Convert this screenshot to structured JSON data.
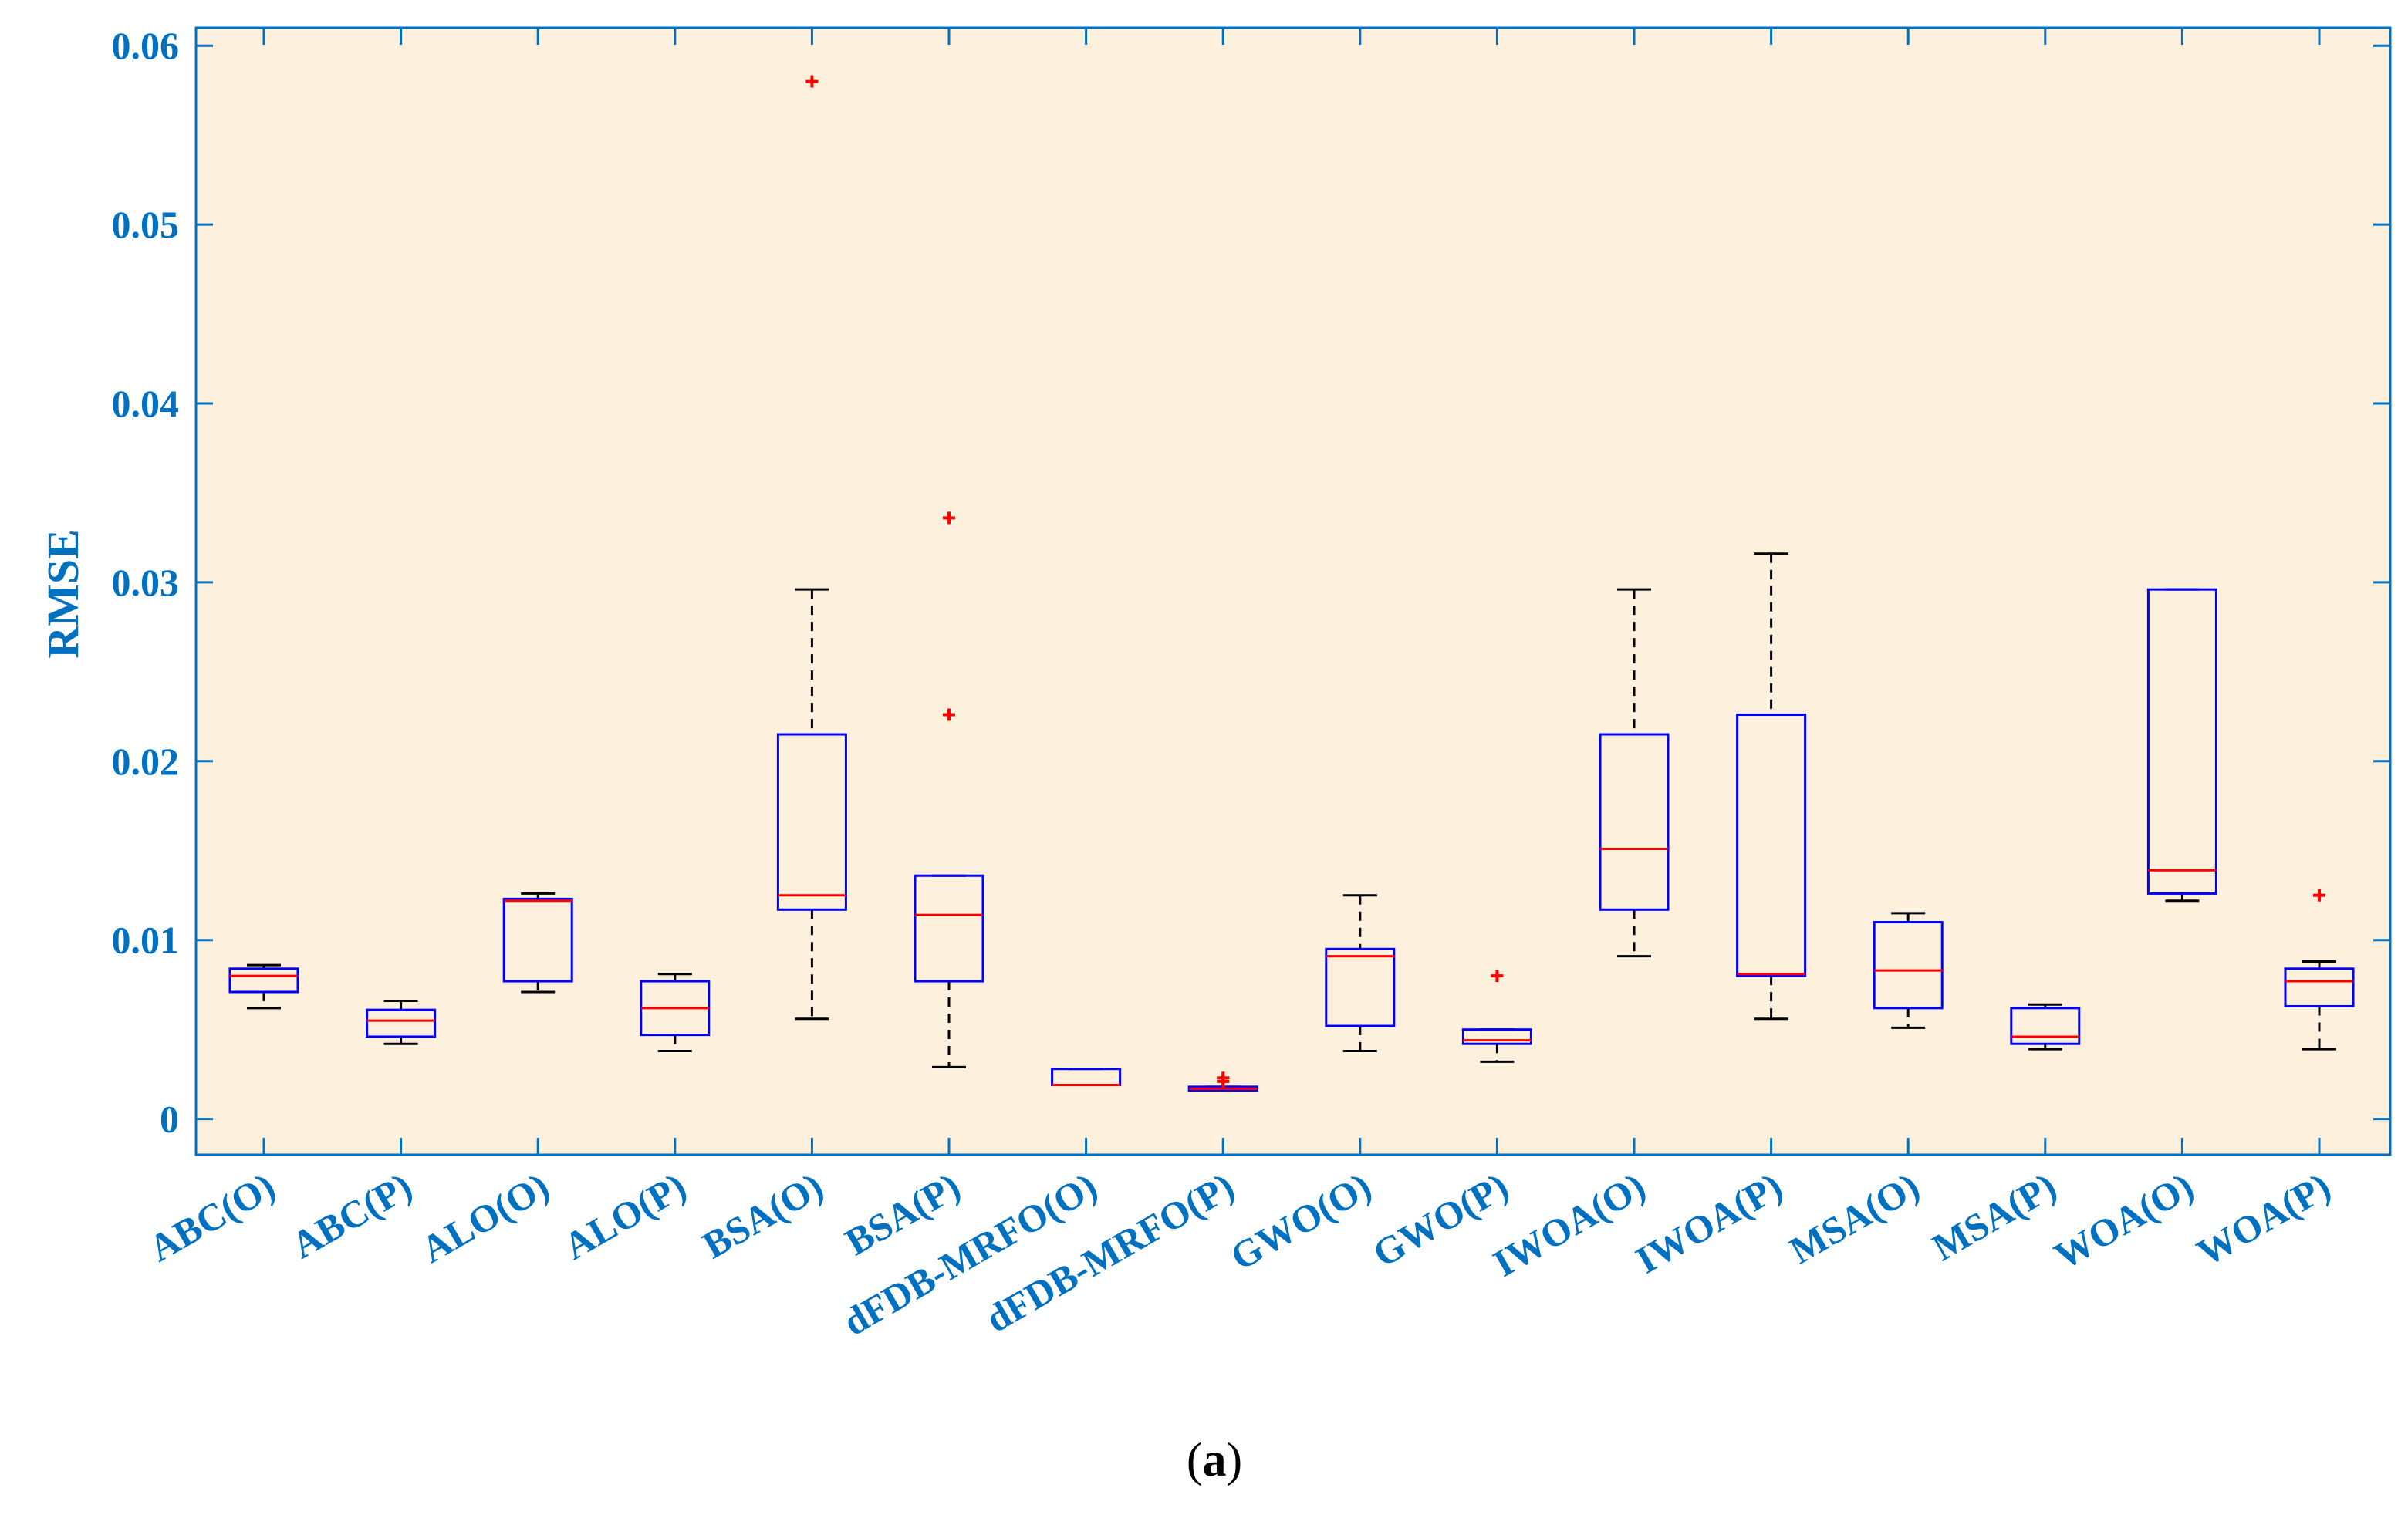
{
  "chart_data": {
    "type": "boxplot",
    "ylabel": "RMSE",
    "xlabel": "",
    "caption_open": "(",
    "caption_letter": "a",
    "caption_close": ")",
    "ylim": [
      -0.002,
      0.061
    ],
    "yticks": [
      {
        "value": 0,
        "label": "0"
      },
      {
        "value": 0.01,
        "label": "0.01"
      },
      {
        "value": 0.02,
        "label": "0.02"
      },
      {
        "value": 0.03,
        "label": "0.03"
      },
      {
        "value": 0.04,
        "label": "0.04"
      },
      {
        "value": 0.05,
        "label": "0.05"
      },
      {
        "value": 0.06,
        "label": "0.06"
      }
    ],
    "grid": false,
    "colors": {
      "plot_background": "#fdf0dc",
      "axis": "#0070c0",
      "tick_label": "#0070c0",
      "box": "#0000ff",
      "median": "#ff0000",
      "whisker": "#000000",
      "outlier": "#ff0000"
    },
    "boxes": [
      {
        "label": "ABC(O)",
        "min": 0.0062,
        "q1": 0.0071,
        "median": 0.008,
        "q3": 0.0084,
        "max": 0.0086,
        "outliers": []
      },
      {
        "label": "ABC(P)",
        "min": 0.0042,
        "q1": 0.0046,
        "median": 0.0055,
        "q3": 0.0061,
        "max": 0.0066,
        "outliers": []
      },
      {
        "label": "ALO(O)",
        "min": 0.0071,
        "q1": 0.0077,
        "median": 0.0122,
        "q3": 0.0123,
        "max": 0.0126,
        "outliers": []
      },
      {
        "label": "ALO(P)",
        "min": 0.0038,
        "q1": 0.0047,
        "median": 0.0062,
        "q3": 0.0077,
        "max": 0.0081,
        "outliers": []
      },
      {
        "label": "BSA(O)",
        "min": 0.0056,
        "q1": 0.0117,
        "median": 0.0125,
        "q3": 0.0215,
        "max": 0.0296,
        "outliers": [
          0.058
        ]
      },
      {
        "label": "BSA(P)",
        "min": 0.0029,
        "q1": 0.0077,
        "median": 0.0114,
        "q3": 0.0136,
        "max": 0.0136,
        "outliers": [
          0.0226,
          0.0336
        ]
      },
      {
        "label": "dFDB-MRFO(O)",
        "min": 0.0019,
        "q1": 0.0019,
        "median": 0.0019,
        "q3": 0.0028,
        "max": 0.0028,
        "outliers": []
      },
      {
        "label": "dFDB-MRFO(P)",
        "min": 0.0016,
        "q1": 0.0016,
        "median": 0.0017,
        "q3": 0.0018,
        "max": 0.0018,
        "outliers": [
          0.0021,
          0.0023
        ]
      },
      {
        "label": "GWO(O)",
        "min": 0.0038,
        "q1": 0.0052,
        "median": 0.0091,
        "q3": 0.0095,
        "max": 0.0125,
        "outliers": []
      },
      {
        "label": "GWO(P)",
        "min": 0.0032,
        "q1": 0.0042,
        "median": 0.0044,
        "q3": 0.005,
        "max": 0.005,
        "outliers": [
          0.008
        ]
      },
      {
        "label": "IWOA(O)",
        "min": 0.0091,
        "q1": 0.0117,
        "median": 0.0151,
        "q3": 0.0215,
        "max": 0.0296,
        "outliers": []
      },
      {
        "label": "IWOA(P)",
        "min": 0.0056,
        "q1": 0.008,
        "median": 0.0081,
        "q3": 0.0226,
        "max": 0.0316,
        "outliers": []
      },
      {
        "label": "MSA(O)",
        "min": 0.0051,
        "q1": 0.0062,
        "median": 0.0083,
        "q3": 0.011,
        "max": 0.0115,
        "outliers": []
      },
      {
        "label": "MSA(P)",
        "min": 0.0039,
        "q1": 0.0042,
        "median": 0.0046,
        "q3": 0.0062,
        "max": 0.0064,
        "outliers": []
      },
      {
        "label": "WOA(O)",
        "min": 0.0122,
        "q1": 0.0126,
        "median": 0.0139,
        "q3": 0.0296,
        "max": 0.0296,
        "outliers": []
      },
      {
        "label": "WOA(P)",
        "min": 0.0039,
        "q1": 0.0063,
        "median": 0.0077,
        "q3": 0.0084,
        "max": 0.0088,
        "outliers": [
          0.0125
        ]
      }
    ]
  }
}
